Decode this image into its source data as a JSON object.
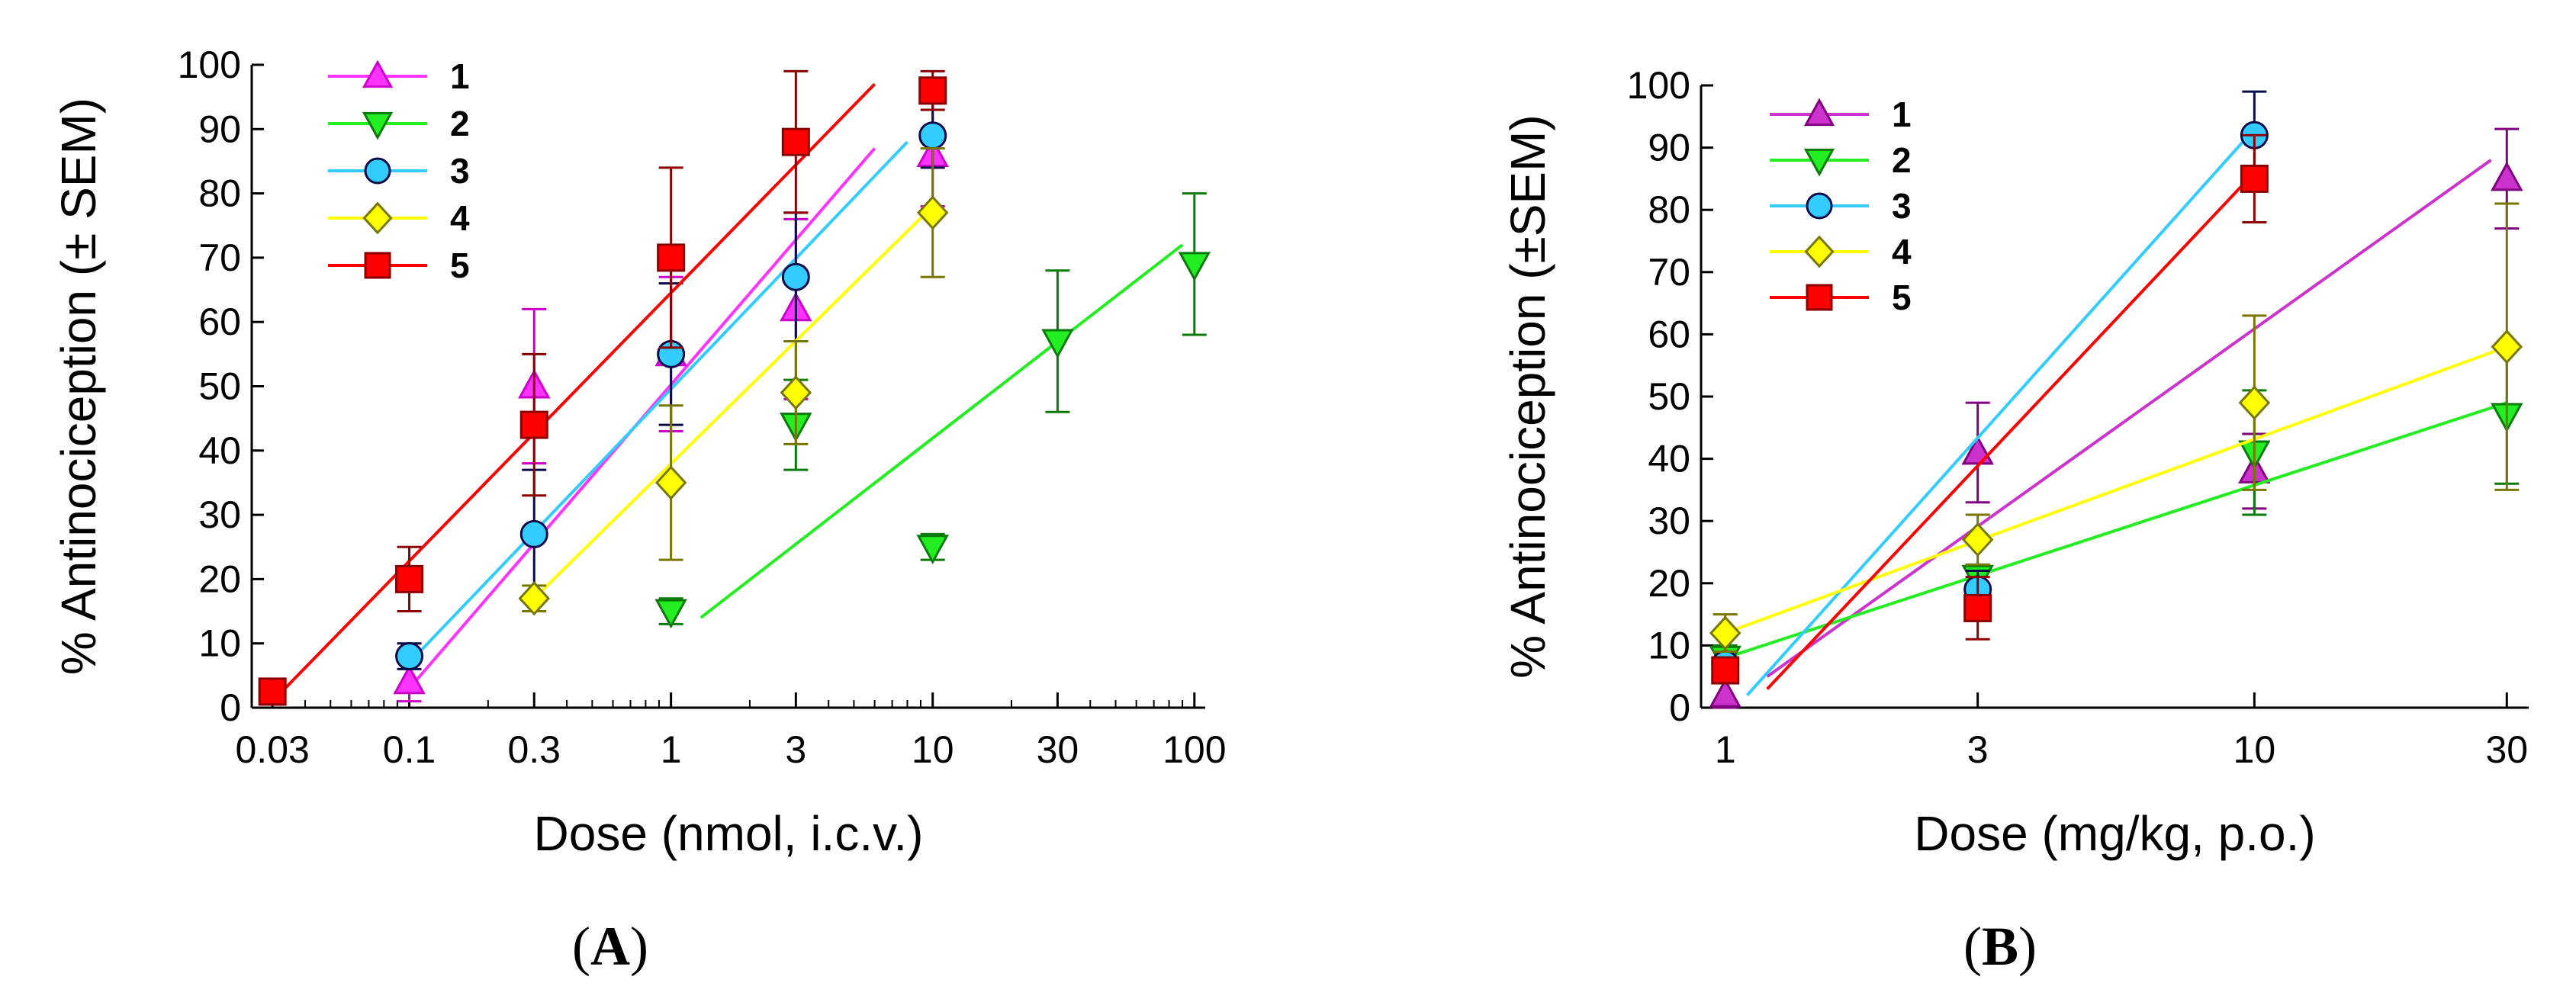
{
  "chart_data": [
    {
      "panel": "A",
      "type": "line",
      "x_scale": "log",
      "xlabel": "Dose (nmol, i.c.v.)",
      "ylabel": "% Antinociception (± SEM)",
      "xlim": [
        0.025,
        110
      ],
      "ylim": [
        0,
        100
      ],
      "xticks": [
        0.03,
        0.1,
        0.3,
        1,
        3,
        10,
        30,
        100
      ],
      "xtick_labels": [
        "0.03",
        "0.1",
        "0.3",
        "1",
        "3",
        "10",
        "30",
        "100"
      ],
      "yticks": [
        0,
        10,
        20,
        30,
        40,
        50,
        60,
        70,
        80,
        90,
        100
      ],
      "ytick_labels": [
        "0",
        "10",
        "20",
        "30",
        "40",
        "50",
        "60",
        "70",
        "80",
        "90",
        "100"
      ],
      "legend_position": "top-left",
      "series": [
        {
          "name": "1",
          "marker": "triangle-up",
          "color": "#ff33ff",
          "edge": "#cc00cc",
          "x": [
            0.1,
            0.3,
            1,
            3,
            10
          ],
          "y": [
            4,
            50,
            55,
            62,
            86
          ],
          "err": [
            3,
            12,
            12,
            14,
            8
          ],
          "fit": [
            [
              0.1,
              3
            ],
            [
              6,
              87
            ]
          ]
        },
        {
          "name": "2",
          "marker": "triangle-down",
          "color": "#22ee22",
          "edge": "#0a7a0a",
          "x": [
            1,
            3,
            10,
            30,
            100
          ],
          "y": [
            15,
            44,
            25,
            57,
            69
          ],
          "err": [
            2,
            7,
            2,
            11,
            11
          ],
          "fit": [
            [
              1.3,
              14
            ],
            [
              90,
              72
            ]
          ]
        },
        {
          "name": "3",
          "marker": "circle",
          "color": "#33ccff",
          "edge": "#0a0a4a",
          "x": [
            0.1,
            0.3,
            1,
            3,
            10
          ],
          "y": [
            8,
            27,
            55,
            67,
            89
          ],
          "err": [
            2,
            10,
            11,
            10,
            5
          ],
          "fit": [
            [
              0.1,
              7
            ],
            [
              8,
              88
            ]
          ]
        },
        {
          "name": "4",
          "marker": "diamond",
          "color": "#ffff00",
          "edge": "#777700",
          "x": [
            0.3,
            1,
            3,
            10
          ],
          "y": [
            17,
            35,
            49,
            77
          ],
          "err": [
            2,
            12,
            8,
            10
          ],
          "fit": [
            [
              0.3,
              17
            ],
            [
              10,
              78
            ]
          ]
        },
        {
          "name": "5",
          "marker": "square",
          "color": "#ff0000",
          "edge": "#8b0000",
          "x": [
            0.03,
            0.1,
            0.3,
            1,
            3,
            10
          ],
          "y": [
            2.5,
            20,
            44,
            70,
            88,
            96
          ],
          "err": [
            2,
            5,
            11,
            14,
            11,
            3
          ],
          "fit": [
            [
              0.03,
              1
            ],
            [
              6,
              97
            ]
          ]
        }
      ]
    },
    {
      "panel": "B",
      "type": "line",
      "x_scale": "log",
      "xlabel": "Dose (mg/kg, p.o.)",
      "ylabel": "% Antinociception (±SEM)",
      "xlim": [
        0.9,
        33
      ],
      "ylim": [
        0,
        100
      ],
      "xticks": [
        1,
        3,
        10,
        30
      ],
      "xtick_labels": [
        "1",
        "3",
        "10",
        "30"
      ],
      "yticks": [
        0,
        10,
        20,
        30,
        40,
        50,
        60,
        70,
        80,
        90,
        100
      ],
      "ytick_labels": [
        "0",
        "10",
        "20",
        "30",
        "40",
        "50",
        "60",
        "70",
        "80",
        "90",
        "100"
      ],
      "legend_position": "top-left",
      "series": [
        {
          "name": "1",
          "marker": "triangle-up",
          "color": "#cc33cc",
          "edge": "#800080",
          "x": [
            1,
            3,
            10,
            30
          ],
          "y": [
            2,
            41,
            38,
            85
          ],
          "err": [
            2,
            8,
            6,
            8
          ],
          "fit": [
            [
              1.2,
              5
            ],
            [
              28,
              88
            ]
          ]
        },
        {
          "name": "2",
          "marker": "triangle-down",
          "color": "#22ee22",
          "edge": "#0a7a0a",
          "x": [
            1,
            3,
            10,
            30
          ],
          "y": [
            8,
            21,
            41,
            47
          ],
          "err": [
            2,
            2,
            10,
            11
          ],
          "fit": [
            [
              1,
              8
            ],
            [
              30,
              49
            ]
          ]
        },
        {
          "name": "3",
          "marker": "circle",
          "color": "#33ccff",
          "edge": "#0a0a4a",
          "x": [
            1,
            3,
            10
          ],
          "y": [
            7,
            19,
            92
          ],
          "err": [
            2,
            3,
            7
          ],
          "fit": [
            [
              1.1,
              2
            ],
            [
              10,
              93
            ]
          ]
        },
        {
          "name": "4",
          "marker": "diamond",
          "color": "#ffff00",
          "edge": "#777700",
          "x": [
            1,
            3,
            10,
            30
          ],
          "y": [
            12,
            27,
            49,
            58
          ],
          "err": [
            3,
            4,
            14,
            23
          ],
          "fit": [
            [
              1,
              12
            ],
            [
              30,
              58
            ]
          ]
        },
        {
          "name": "5",
          "marker": "square",
          "color": "#ff0000",
          "edge": "#8b0000",
          "x": [
            1,
            3,
            10
          ],
          "y": [
            6,
            16,
            85
          ],
          "err": [
            2,
            5,
            7
          ],
          "fit": [
            [
              1.2,
              3
            ],
            [
              10,
              86
            ]
          ]
        }
      ]
    }
  ],
  "panel_labels": [
    {
      "open": "(",
      "letter": "A",
      "close": ")"
    },
    {
      "open": "(",
      "letter": "B",
      "close": ")"
    }
  ]
}
